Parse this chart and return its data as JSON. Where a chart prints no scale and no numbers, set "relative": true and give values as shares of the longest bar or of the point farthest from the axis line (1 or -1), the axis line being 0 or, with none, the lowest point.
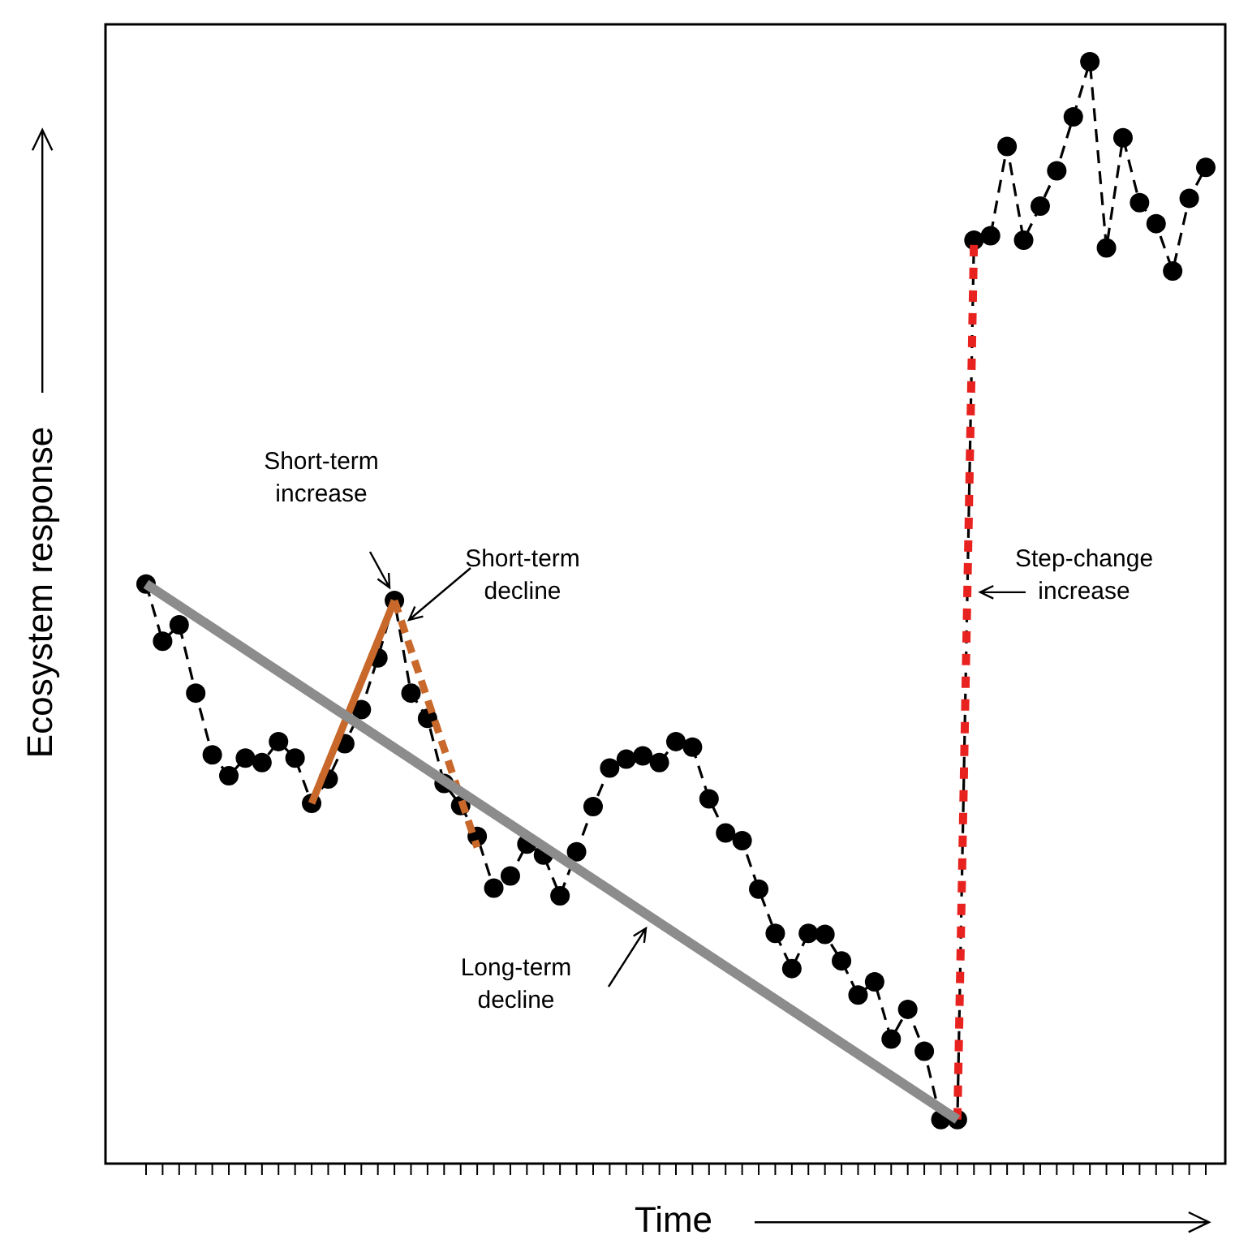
{
  "chart_data": {
    "type": "line",
    "relative": true,
    "xlabel": "Time",
    "ylabel": "Ecosystem response",
    "legend": false,
    "categories": [
      null,
      null,
      null,
      null,
      null,
      null,
      null,
      null,
      null,
      null,
      null,
      null,
      null,
      null,
      null,
      null,
      null,
      null,
      null,
      null,
      null,
      null,
      null,
      null,
      null,
      null,
      null,
      null,
      null,
      null,
      null,
      null,
      null,
      null,
      null,
      null,
      null,
      null,
      null,
      null,
      null,
      null,
      null,
      null,
      null,
      null,
      null,
      null,
      null,
      null,
      null,
      null,
      null,
      null,
      null,
      null,
      null,
      null,
      null,
      null,
      null,
      null,
      null,
      null,
      null
    ],
    "series": [
      {
        "color": "#000000",
        "marker": "circle",
        "line_style": "dashed",
        "values": [
          0.526,
          0.474,
          0.489,
          0.427,
          0.371,
          0.352,
          0.368,
          0.364,
          0.383,
          0.368,
          0.327,
          0.349,
          0.381,
          0.412,
          0.459,
          0.511,
          0.427,
          0.404,
          0.345,
          0.325,
          0.297,
          0.25,
          0.261,
          0.29,
          0.28,
          0.243,
          0.283,
          0.324,
          0.359,
          0.367,
          0.37,
          0.364,
          0.383,
          0.378,
          0.331,
          0.3,
          0.293,
          0.249,
          0.209,
          0.177,
          0.209,
          0.208,
          0.184,
          0.153,
          0.165,
          0.113,
          0.14,
          0.102,
          0.04,
          0.04,
          0.838,
          0.842,
          0.923,
          0.838,
          0.869,
          0.901,
          0.95,
          1,
          0.831,
          0.931,
          0.872,
          0.853,
          0.81,
          0.876,
          0.904
        ]
      },
      {
        "color": "#8c8c8c",
        "marker": "none",
        "line_style": "solid",
        "values": [
          0.526,
          null,
          null,
          null,
          null,
          null,
          null,
          null,
          null,
          null,
          null,
          null,
          null,
          null,
          null,
          null,
          null,
          null,
          null,
          null,
          null,
          null,
          null,
          null,
          null,
          null,
          null,
          null,
          null,
          null,
          null,
          null,
          null,
          null,
          null,
          null,
          null,
          null,
          null,
          null,
          null,
          null,
          null,
          null,
          null,
          null,
          null,
          null,
          null,
          0.04,
          null,
          null,
          null,
          null,
          null,
          null,
          null,
          null,
          null,
          null,
          null,
          null,
          null,
          null,
          null
        ]
      },
      {
        "color": "#c8682a",
        "marker": "none",
        "line_style": "solid",
        "values": [
          null,
          null,
          null,
          null,
          null,
          null,
          null,
          null,
          null,
          null,
          0.327,
          null,
          null,
          null,
          null,
          0.511,
          null,
          null,
          null,
          null,
          null,
          null,
          null,
          null,
          null,
          null,
          null,
          null,
          null,
          null,
          null,
          null,
          null,
          null,
          null,
          null,
          null,
          null,
          null,
          null,
          null,
          null,
          null,
          null,
          null,
          null,
          null,
          null,
          null,
          null,
          null,
          null,
          null,
          null,
          null,
          null,
          null,
          null,
          null,
          null,
          null,
          null,
          null,
          null,
          null
        ]
      },
      {
        "color": "#c8682a",
        "marker": "none",
        "line_style": "dashed",
        "values": [
          null,
          null,
          null,
          null,
          null,
          null,
          null,
          null,
          null,
          null,
          null,
          null,
          null,
          null,
          null,
          0.511,
          null,
          null,
          null,
          null,
          0.287,
          null,
          null,
          null,
          null,
          null,
          null,
          null,
          null,
          null,
          null,
          null,
          null,
          null,
          null,
          null,
          null,
          null,
          null,
          null,
          null,
          null,
          null,
          null,
          null,
          null,
          null,
          null,
          null,
          null,
          null,
          null,
          null,
          null,
          null,
          null,
          null,
          null,
          null,
          null,
          null,
          null,
          null,
          null,
          null
        ]
      },
      {
        "color": "#e8231f",
        "marker": "none",
        "line_style": "dotted",
        "values": [
          null,
          null,
          null,
          null,
          null,
          null,
          null,
          null,
          null,
          null,
          null,
          null,
          null,
          null,
          null,
          null,
          null,
          null,
          null,
          null,
          null,
          null,
          null,
          null,
          null,
          null,
          null,
          null,
          null,
          null,
          null,
          null,
          null,
          null,
          null,
          null,
          null,
          null,
          null,
          null,
          null,
          null,
          null,
          null,
          null,
          null,
          null,
          null,
          null,
          0.04,
          0.838,
          null,
          null,
          null,
          null,
          null,
          null,
          null,
          null,
          null,
          null,
          null,
          null,
          null,
          null
        ]
      }
    ],
    "annotations": [
      "Short-term\nincrease",
      "Short-term\ndecline",
      "Step-change\nincrease",
      "Long-term\ndecline"
    ]
  }
}
